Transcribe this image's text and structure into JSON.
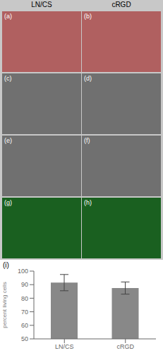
{
  "chart_data": {
    "type": "bar",
    "categories": [
      "LN/CS",
      "cRGD"
    ],
    "values": [
      91.5,
      87.5
    ],
    "errors": [
      6.0,
      4.5
    ],
    "color": "#888888",
    "ylim": [
      50,
      100
    ],
    "yticks": [
      50,
      60,
      70,
      80,
      90,
      100
    ],
    "ylabel": "percent living cells",
    "grid": false,
    "annotations": [
      "LN/CS",
      "cRGD",
      "(a)",
      "(b)",
      "(c)",
      "(d)",
      "(e)",
      "(f)",
      "(g)",
      "(h)",
      "(i)"
    ]
  }
}
